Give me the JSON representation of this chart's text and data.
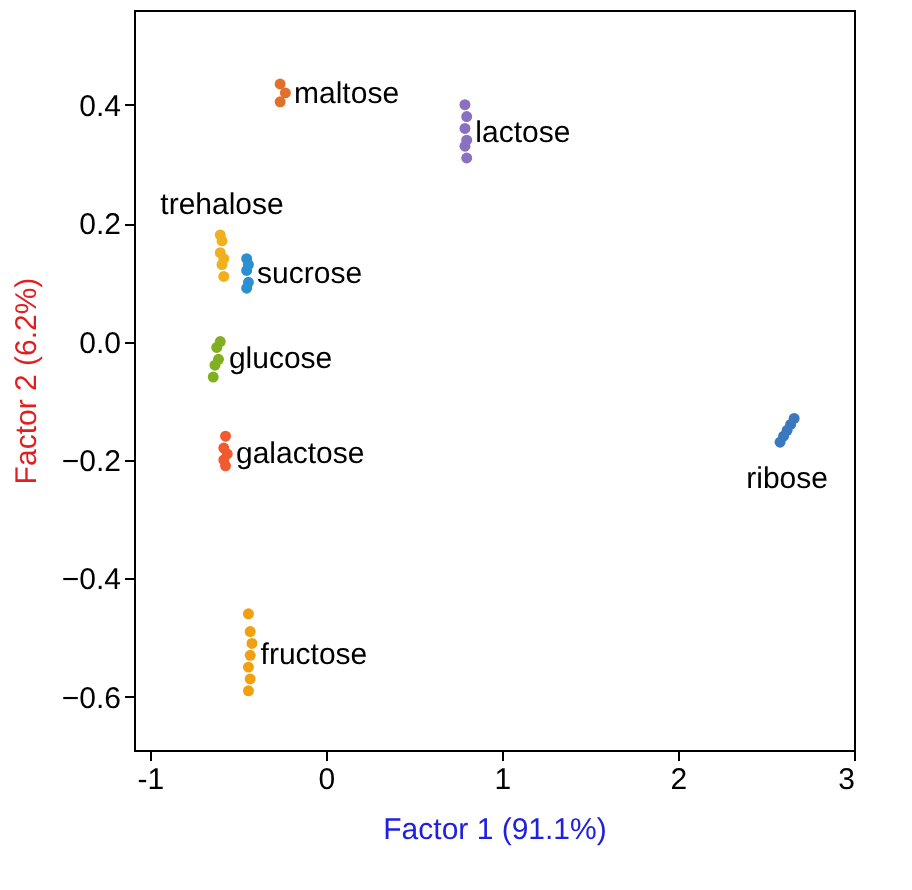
{
  "chart_data": {
    "type": "scatter",
    "xlabel": "Factor 1 (91.1%)",
    "ylabel": "Factor 2 (6.2%)",
    "xlim": [
      -1.09,
      3.0
    ],
    "ylim": [
      -0.69,
      0.56
    ],
    "xticks": [
      -1,
      0,
      1,
      2,
      3
    ],
    "yticks": [
      {
        "value": -0.6,
        "label": "−0.6"
      },
      {
        "value": -0.4,
        "label": "−0.4"
      },
      {
        "value": -0.2,
        "label": "−0.2"
      },
      {
        "value": 0,
        "label": "0.0"
      },
      {
        "value": 0.2,
        "label": "0.2"
      },
      {
        "value": 0.4,
        "label": "0.4"
      }
    ],
    "grid": false,
    "legend": false,
    "marker": "circle",
    "series": [
      {
        "name": "maltose",
        "color": "#e0702a",
        "x": [
          -0.26,
          -0.23,
          -0.26
        ],
        "values": [
          0.435,
          0.42,
          0.405
        ]
      },
      {
        "name": "lactose",
        "color": "#8a70c0",
        "x": [
          0.79,
          0.8,
          0.79,
          0.8,
          0.79,
          0.8
        ],
        "values": [
          0.4,
          0.38,
          0.36,
          0.34,
          0.33,
          0.31
        ]
      },
      {
        "name": "trehalose",
        "color": "#f0b020",
        "x": [
          -0.6,
          -0.59,
          -0.6,
          -0.58,
          -0.59,
          -0.58
        ],
        "values": [
          0.18,
          0.17,
          0.15,
          0.14,
          0.13,
          0.11
        ]
      },
      {
        "name": "sucrose",
        "color": "#2a90d0",
        "x": [
          -0.45,
          -0.44,
          -0.45,
          -0.44,
          -0.45
        ],
        "values": [
          0.14,
          0.13,
          0.12,
          0.1,
          0.09
        ]
      },
      {
        "name": "glucose",
        "color": "#80b020",
        "x": [
          -0.6,
          -0.62,
          -0.61,
          -0.63,
          -0.64
        ],
        "values": [
          0.0,
          -0.01,
          -0.03,
          -0.04,
          -0.06
        ]
      },
      {
        "name": "galactose",
        "color": "#f05a30",
        "x": [
          -0.57,
          -0.58,
          -0.56,
          -0.58,
          -0.57
        ],
        "values": [
          -0.16,
          -0.18,
          -0.19,
          -0.2,
          -0.21
        ]
      },
      {
        "name": "fructose",
        "color": "#f0a010",
        "x": [
          -0.44,
          -0.43,
          -0.42,
          -0.43,
          -0.44,
          -0.43,
          -0.44
        ],
        "values": [
          -0.46,
          -0.49,
          -0.51,
          -0.53,
          -0.55,
          -0.57,
          -0.59
        ]
      },
      {
        "name": "ribose",
        "color": "#3a78c0",
        "x": [
          2.66,
          2.64,
          2.62,
          2.6,
          2.58
        ],
        "values": [
          -0.13,
          -0.14,
          -0.15,
          -0.16,
          -0.17
        ]
      }
    ]
  }
}
